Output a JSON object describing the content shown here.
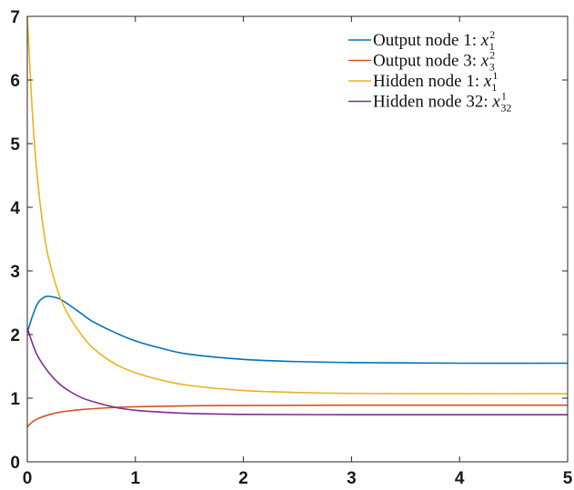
{
  "chart_data": {
    "type": "line",
    "xlim": [
      0,
      5
    ],
    "ylim": [
      0,
      7
    ],
    "x_ticks": [
      "0",
      "1",
      "2",
      "3",
      "4",
      "5"
    ],
    "y_ticks": [
      "0",
      "1",
      "2",
      "3",
      "4",
      "5",
      "6",
      "7"
    ],
    "grid": false,
    "legend_position": "top-right",
    "series": [
      {
        "name": "Output node 1: x_1^2",
        "label": {
          "prefix": "Output node 1: ",
          "var": "x",
          "sup": "2",
          "sub": "1"
        },
        "color": "#0072BD",
        "points": [
          [
            0,
            2.03
          ],
          [
            0.05,
            2.3
          ],
          [
            0.1,
            2.5
          ],
          [
            0.15,
            2.58
          ],
          [
            0.2,
            2.6
          ],
          [
            0.3,
            2.56
          ],
          [
            0.4,
            2.45
          ],
          [
            0.5,
            2.33
          ],
          [
            0.6,
            2.21
          ],
          [
            0.8,
            2.04
          ],
          [
            1.0,
            1.9
          ],
          [
            1.25,
            1.78
          ],
          [
            1.5,
            1.69
          ],
          [
            2.0,
            1.61
          ],
          [
            2.5,
            1.575
          ],
          [
            3.0,
            1.56
          ],
          [
            3.5,
            1.555
          ],
          [
            4.0,
            1.55
          ],
          [
            5.0,
            1.55
          ]
        ]
      },
      {
        "name": "Output node 3: x_3^2",
        "label": {
          "prefix": "Output node 3: ",
          "var": "x",
          "sup": "2",
          "sub": "3"
        },
        "color": "#D95319",
        "points": [
          [
            0,
            0.55
          ],
          [
            0.05,
            0.63
          ],
          [
            0.1,
            0.68
          ],
          [
            0.2,
            0.74
          ],
          [
            0.3,
            0.78
          ],
          [
            0.5,
            0.82
          ],
          [
            0.75,
            0.85
          ],
          [
            1.0,
            0.865
          ],
          [
            1.5,
            0.88
          ],
          [
            2.0,
            0.885
          ],
          [
            3.0,
            0.89
          ],
          [
            4.0,
            0.89
          ],
          [
            5.0,
            0.89
          ]
        ]
      },
      {
        "name": "Hidden node 1: x_1^1",
        "label": {
          "prefix": "Hidden node 1: ",
          "var": "x",
          "sup": "1",
          "sub": "1"
        },
        "color": "#EDB120",
        "points": [
          [
            0,
            7.0
          ],
          [
            0.03,
            6.0
          ],
          [
            0.06,
            5.15
          ],
          [
            0.1,
            4.35
          ],
          [
            0.15,
            3.65
          ],
          [
            0.2,
            3.18
          ],
          [
            0.3,
            2.6
          ],
          [
            0.4,
            2.25
          ],
          [
            0.5,
            2.0
          ],
          [
            0.6,
            1.8
          ],
          [
            0.8,
            1.55
          ],
          [
            1.0,
            1.4
          ],
          [
            1.25,
            1.28
          ],
          [
            1.5,
            1.2
          ],
          [
            2.0,
            1.12
          ],
          [
            2.5,
            1.09
          ],
          [
            3.0,
            1.075
          ],
          [
            4.0,
            1.07
          ],
          [
            5.0,
            1.07
          ]
        ]
      },
      {
        "name": "Hidden node 32: x_32^1",
        "label": {
          "prefix": "Hidden node 32: ",
          "var": "x",
          "sup": "1",
          "sub": "32"
        },
        "color": "#7E2F8E",
        "points": [
          [
            0,
            2.1
          ],
          [
            0.05,
            1.85
          ],
          [
            0.1,
            1.65
          ],
          [
            0.2,
            1.4
          ],
          [
            0.3,
            1.22
          ],
          [
            0.4,
            1.1
          ],
          [
            0.5,
            1.01
          ],
          [
            0.6,
            0.95
          ],
          [
            0.8,
            0.86
          ],
          [
            1.0,
            0.81
          ],
          [
            1.25,
            0.78
          ],
          [
            1.5,
            0.76
          ],
          [
            2.0,
            0.745
          ],
          [
            3.0,
            0.74
          ],
          [
            4.0,
            0.74
          ],
          [
            5.0,
            0.74
          ]
        ]
      }
    ]
  }
}
